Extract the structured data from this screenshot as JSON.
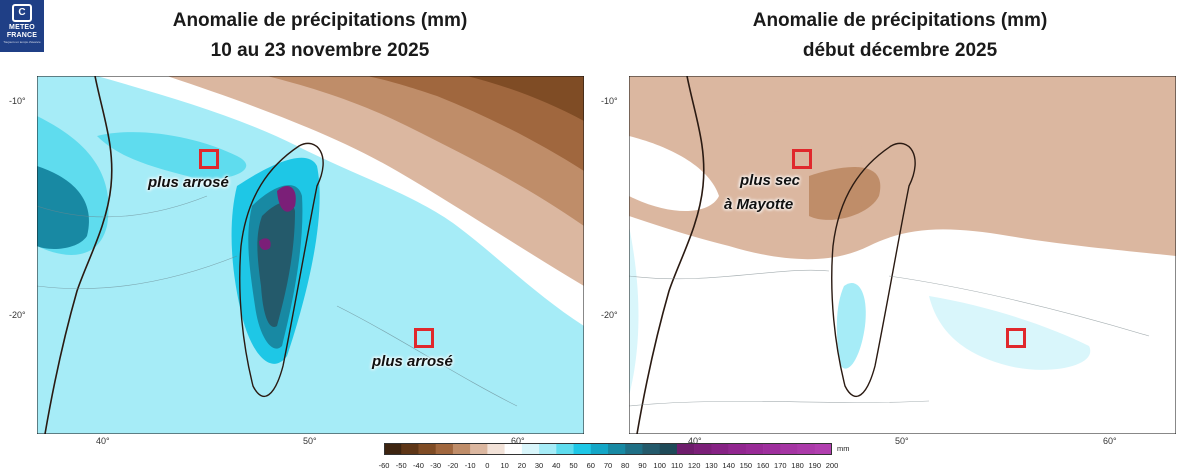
{
  "logo": {
    "brand_line1": "METEO",
    "brand_line2": "FRANCE",
    "tagline": "Toujours un temps d'avance"
  },
  "maps": [
    {
      "title_line1": "Anomalie de précipitations (mm)",
      "title_line2": "10 au 23 novembre 2025",
      "annotations": [
        "plus arrosé",
        "plus arrosé"
      ],
      "lat_ticks": [
        "-10°",
        "-20°"
      ],
      "lon_ticks": [
        "40°",
        "50°",
        "60°"
      ]
    },
    {
      "title_line1": "Anomalie de précipitations (mm)",
      "title_line2": "début décembre 2025",
      "annotations": [
        "plus sec",
        "à Mayotte"
      ],
      "lat_ticks": [
        "-10°",
        "-20°"
      ],
      "lon_ticks": [
        "40°",
        "50°",
        "60°"
      ]
    }
  ],
  "colorbar": {
    "unit": "mm",
    "ticks": [
      "-60",
      "-50",
      "-40",
      "-30",
      "-20",
      "-10",
      "0",
      "10",
      "20",
      "30",
      "40",
      "50",
      "60",
      "70",
      "80",
      "90",
      "100",
      "110",
      "120",
      "130",
      "140",
      "150",
      "160",
      "170",
      "180",
      "190",
      "200"
    ],
    "colors": [
      "#3d2410",
      "#5e3617",
      "#7f4c25",
      "#a0673e",
      "#bf8d69",
      "#dbb7a0",
      "#f2e2d8",
      "#ffffff",
      "#d9f6fb",
      "#a6ecf7",
      "#5fdcee",
      "#1ec7e6",
      "#14a6c6",
      "#1889a3",
      "#1f6f85",
      "#245a6b",
      "#1f4a58",
      "#6e1d6c",
      "#7b1f78",
      "#862284",
      "#91268f",
      "#982a96",
      "#9e2f9d",
      "#a535a3",
      "#ab3aa9",
      "#b13faf"
    ]
  }
}
